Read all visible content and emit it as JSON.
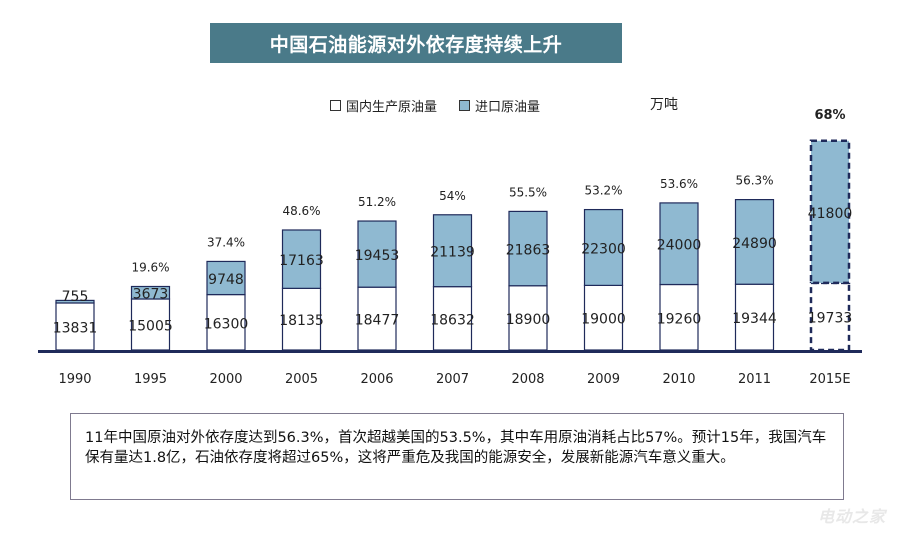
{
  "title": "中国石油能源对外依存度持续上升",
  "legend": [
    {
      "label": "国内生产原油量",
      "color": "#ffffff"
    },
    {
      "label": "进口原油量",
      "color": "#8fb9d1"
    }
  ],
  "unit": "万吨",
  "chart_data": {
    "type": "bar",
    "stacked": true,
    "categories": [
      "1990",
      "1995",
      "2000",
      "2005",
      "2006",
      "2007",
      "2008",
      "2009",
      "2010",
      "2011",
      "2015E"
    ],
    "series": [
      {
        "name": "国内生产原油量",
        "values": [
          13831,
          15005,
          16300,
          18135,
          18477,
          18632,
          18900,
          19000,
          19260,
          19344,
          19733
        ]
      },
      {
        "name": "进口原油量",
        "values": [
          755,
          3673,
          9748,
          17163,
          19453,
          21139,
          21863,
          22300,
          24000,
          24890,
          41800
        ]
      }
    ],
    "dependency_labels": [
      "",
      "19.6%",
      "37.4%",
      "48.6%",
      "51.2%",
      "54%",
      "55.5%",
      "53.2%",
      "53.6%",
      "56.3%",
      "68%"
    ],
    "estimate_category": "2015E",
    "colors": {
      "domestic": "#ffffff",
      "import": "#8fb9d1",
      "outline": "#1f2a5a",
      "axis": "#1f2a5a"
    }
  },
  "note": "11年中国原油对外依存度达到56.3%，首次超越美国的53.5%，其中车用原油消耗占比57%。预计15年，我国汽车保有量达1.8亿，石油依存度将超过65%，这将严重危及我国的能源安全，发展新能源汽车意义重大。",
  "watermark": "电动之家"
}
